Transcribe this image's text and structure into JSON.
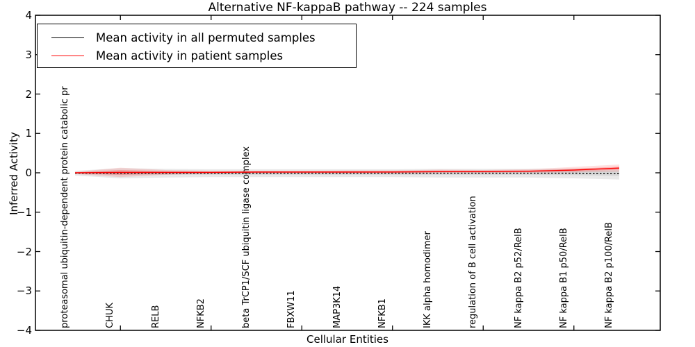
{
  "chart_data": {
    "type": "line",
    "title": "Alternative NF-kappaB pathway -- 224 samples",
    "xlabel": "Cellular Entities",
    "ylabel": "Inferred Activity",
    "ylim": [
      -4,
      4
    ],
    "yticks": [
      {
        "value": 4,
        "label": "4"
      },
      {
        "value": 3,
        "label": "3"
      },
      {
        "value": 2,
        "label": "2"
      },
      {
        "value": 1,
        "label": "1"
      },
      {
        "value": 0,
        "label": "0"
      },
      {
        "value": -1,
        "label": "−1"
      },
      {
        "value": -2,
        "label": "−2"
      },
      {
        "value": -3,
        "label": "−3"
      },
      {
        "value": -4,
        "label": "−4"
      }
    ],
    "xtick_indices": [
      1,
      3,
      5,
      7,
      9,
      11
    ],
    "grid": false,
    "legend_position": "upper left",
    "categories": [
      "proteasomal ubiquitin-dependent protein catabolic pr",
      "CHUK",
      "RELB",
      "NFKB2",
      "beta TrCP1/SCF ubiquitin ligase complex",
      "FBXW11",
      "MAP3K14",
      "NFKB1",
      "IKK alpha homodimer",
      "regulation of B cell activation",
      "NF kappa B2 p52/RelB",
      "NF kappa B1 p50/RelB",
      "NF kappa B2 p100/RelB"
    ],
    "series": [
      {
        "name": "Mean activity in all permuted samples",
        "color": "#000000",
        "style": "dashed",
        "values": [
          -0.01,
          -0.01,
          -0.01,
          -0.01,
          -0.01,
          -0.01,
          -0.01,
          -0.01,
          -0.01,
          -0.01,
          -0.01,
          -0.01,
          -0.02
        ]
      },
      {
        "name": "Mean activity in patient samples",
        "color": "#ff0000",
        "style": "solid",
        "values": [
          0.0,
          0.01,
          0.01,
          0.01,
          0.02,
          0.02,
          0.02,
          0.02,
          0.03,
          0.03,
          0.04,
          0.07,
          0.12
        ]
      }
    ],
    "bands": [
      {
        "name": "permuted-std-band",
        "color": "#999999",
        "opacity": 0.22,
        "upper": [
          0.05,
          0.12,
          0.1,
          0.09,
          0.09,
          0.09,
          0.09,
          0.09,
          0.1,
          0.1,
          0.1,
          0.11,
          0.12
        ],
        "lower": [
          -0.07,
          -0.14,
          -0.12,
          -0.11,
          -0.11,
          -0.11,
          -0.11,
          -0.11,
          -0.12,
          -0.12,
          -0.12,
          -0.14,
          -0.17
        ]
      },
      {
        "name": "permuted-std-band-core",
        "color": "#999999",
        "opacity": 0.22,
        "upper": [
          0.02,
          0.05,
          0.04,
          0.04,
          0.04,
          0.04,
          0.04,
          0.04,
          0.05,
          0.05,
          0.05,
          0.05,
          0.06
        ],
        "lower": [
          -0.03,
          -0.06,
          -0.05,
          -0.05,
          -0.05,
          -0.05,
          -0.05,
          -0.05,
          -0.05,
          -0.05,
          -0.05,
          -0.06,
          -0.08
        ]
      },
      {
        "name": "patient-band-outer",
        "color": "#ff0000",
        "opacity": 0.12,
        "upper": [
          0.02,
          0.13,
          0.07,
          0.05,
          0.05,
          0.05,
          0.06,
          0.06,
          0.08,
          0.07,
          0.09,
          0.15,
          0.21
        ],
        "lower": [
          -0.03,
          -0.11,
          -0.05,
          -0.02,
          -0.01,
          -0.01,
          -0.01,
          -0.01,
          -0.01,
          0.0,
          0.0,
          0.01,
          0.03
        ]
      },
      {
        "name": "patient-band-inner",
        "color": "#ff0000",
        "opacity": 0.2,
        "upper": [
          0.01,
          0.07,
          0.04,
          0.03,
          0.03,
          0.03,
          0.04,
          0.04,
          0.05,
          0.05,
          0.06,
          0.1,
          0.16
        ],
        "lower": [
          -0.01,
          -0.05,
          -0.02,
          -0.01,
          0.0,
          0.0,
          0.0,
          0.01,
          0.01,
          0.01,
          0.02,
          0.04,
          0.08
        ]
      }
    ],
    "colors": {
      "axis": "#000000",
      "background": "#ffffff"
    }
  }
}
